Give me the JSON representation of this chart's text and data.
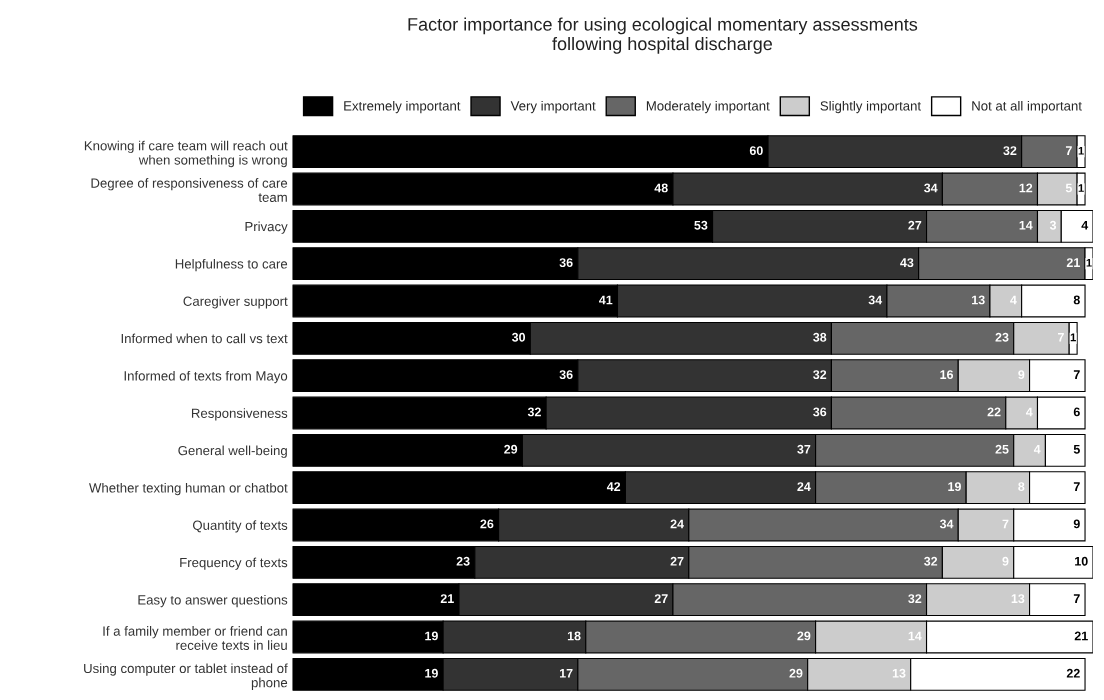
{
  "chart_data": {
    "type": "bar",
    "orientation": "horizontal",
    "stacked": true,
    "title": "Factor importance for using ecological momentary assessments\nfollowing hospital discharge",
    "categories": [
      "Knowing if care team will reach out\nwhen something is wrong",
      "Degree of responsiveness of care\nteam",
      "Privacy",
      "Helpfulness to care",
      "Caregiver support",
      "Informed when to call vs text",
      "Informed of texts from Mayo",
      "Responsiveness",
      "General well-being",
      "Whether texting human or chatbot",
      "Quantity of texts",
      "Frequency of texts",
      "Easy to answer questions",
      "If a family member or friend can\nreceive texts in lieu",
      "Using computer or tablet instead of\nphone"
    ],
    "series": [
      {
        "name": "Extremely important",
        "color": "#000000",
        "values": [
          60,
          48,
          53,
          36,
          41,
          30,
          36,
          32,
          29,
          42,
          26,
          23,
          21,
          19,
          19
        ]
      },
      {
        "name": "Very important",
        "color": "#333333",
        "values": [
          32,
          34,
          27,
          43,
          34,
          38,
          32,
          36,
          37,
          24,
          24,
          27,
          27,
          18,
          17
        ]
      },
      {
        "name": "Moderately important",
        "color": "#666666",
        "values": [
          7,
          12,
          14,
          21,
          13,
          23,
          16,
          22,
          25,
          19,
          34,
          32,
          32,
          29,
          29
        ]
      },
      {
        "name": "Slightly important",
        "color": "#cccccc",
        "values": [
          null,
          5,
          3,
          null,
          4,
          7,
          9,
          4,
          4,
          8,
          7,
          9,
          13,
          14,
          13
        ]
      },
      {
        "name": "Not at all important",
        "color": "#ffffff",
        "values": [
          1,
          1,
          4,
          1,
          8,
          1,
          7,
          6,
          5,
          7,
          9,
          10,
          7,
          21,
          22
        ]
      }
    ],
    "data_labels": true,
    "legend": "top",
    "tick_labels": "y",
    "grid": false
  }
}
